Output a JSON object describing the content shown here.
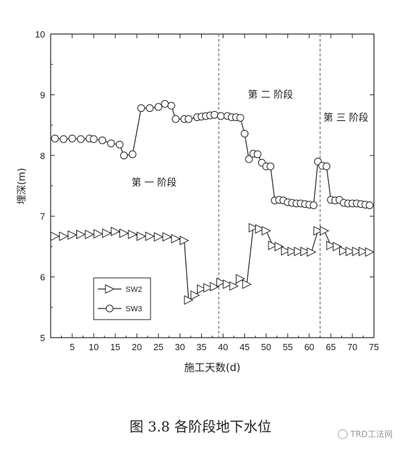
{
  "figure": {
    "caption": "图 3.8 各阶段地下水位",
    "watermark": "TRD工法网"
  },
  "chart_data": {
    "type": "line",
    "title": "",
    "xlabel": "施工天数(d)",
    "ylabel": "埋深(m)",
    "xlim": [
      0,
      75
    ],
    "ylim": [
      5,
      10
    ],
    "xticks": [
      5,
      10,
      15,
      20,
      25,
      30,
      35,
      40,
      45,
      50,
      55,
      60,
      65,
      70,
      75
    ],
    "yticks": [
      5,
      6,
      7,
      8,
      9,
      10
    ],
    "grid": false,
    "legend_position": "bottom-left",
    "stage_dividers_x": [
      39,
      62.5
    ],
    "annotations": [
      {
        "text": "第 一 阶段",
        "x": 24,
        "y": 7.5
      },
      {
        "text": "第 二 阶段",
        "x": 51,
        "y": 8.95
      },
      {
        "text": "第 三 阶段",
        "x": 68.5,
        "y": 8.57
      }
    ],
    "series": [
      {
        "name": "SW2",
        "marker": "triangle-right",
        "x": [
          1,
          3,
          5,
          7,
          9,
          11,
          13,
          15,
          17,
          19,
          21,
          23,
          25,
          27,
          29,
          31,
          32,
          33.5,
          35,
          36.5,
          38,
          39.5,
          41,
          42.5,
          44,
          45.5,
          47,
          48.5,
          50,
          51.5,
          53,
          54.5,
          56,
          57.5,
          59,
          60.5,
          62,
          63.5,
          65,
          66.5,
          68,
          69.5,
          71,
          72.5,
          74
        ],
        "y": [
          6.67,
          6.67,
          6.69,
          6.7,
          6.7,
          6.71,
          6.72,
          6.75,
          6.72,
          6.7,
          6.67,
          6.67,
          6.66,
          6.66,
          6.63,
          6.6,
          5.62,
          5.7,
          5.8,
          5.82,
          5.84,
          5.91,
          5.88,
          5.85,
          5.97,
          5.88,
          6.81,
          6.79,
          6.76,
          6.52,
          6.5,
          6.43,
          6.42,
          6.42,
          6.42,
          6.41,
          6.76,
          6.76,
          6.52,
          6.5,
          6.43,
          6.42,
          6.42,
          6.42,
          6.41
        ]
      },
      {
        "name": "SW3",
        "marker": "circle",
        "x": [
          1,
          3,
          5,
          7,
          9,
          10,
          12,
          14,
          16,
          17,
          19,
          21,
          23,
          25,
          26.5,
          28,
          29,
          31,
          32,
          34,
          35,
          36,
          37,
          38,
          39.5,
          41,
          42,
          43,
          44,
          45,
          46,
          47,
          48,
          49,
          50,
          51,
          52,
          53,
          54,
          55,
          56,
          57,
          58,
          59,
          60,
          61,
          62,
          63,
          64,
          65,
          66,
          67,
          68,
          69,
          70,
          71,
          72,
          73,
          74
        ],
        "y": [
          8.28,
          8.27,
          8.28,
          8.27,
          8.28,
          8.27,
          8.25,
          8.2,
          8.18,
          8.0,
          8.02,
          8.78,
          8.78,
          8.8,
          8.85,
          8.82,
          8.6,
          8.6,
          8.6,
          8.63,
          8.64,
          8.65,
          8.66,
          8.67,
          8.65,
          8.65,
          8.63,
          8.63,
          8.62,
          8.36,
          7.94,
          8.03,
          8.02,
          7.88,
          7.82,
          7.82,
          7.26,
          7.27,
          7.26,
          7.23,
          7.22,
          7.21,
          7.21,
          7.2,
          7.19,
          7.18,
          7.9,
          7.83,
          7.82,
          7.27,
          7.26,
          7.27,
          7.22,
          7.21,
          7.21,
          7.21,
          7.2,
          7.19,
          7.18
        ]
      }
    ]
  }
}
